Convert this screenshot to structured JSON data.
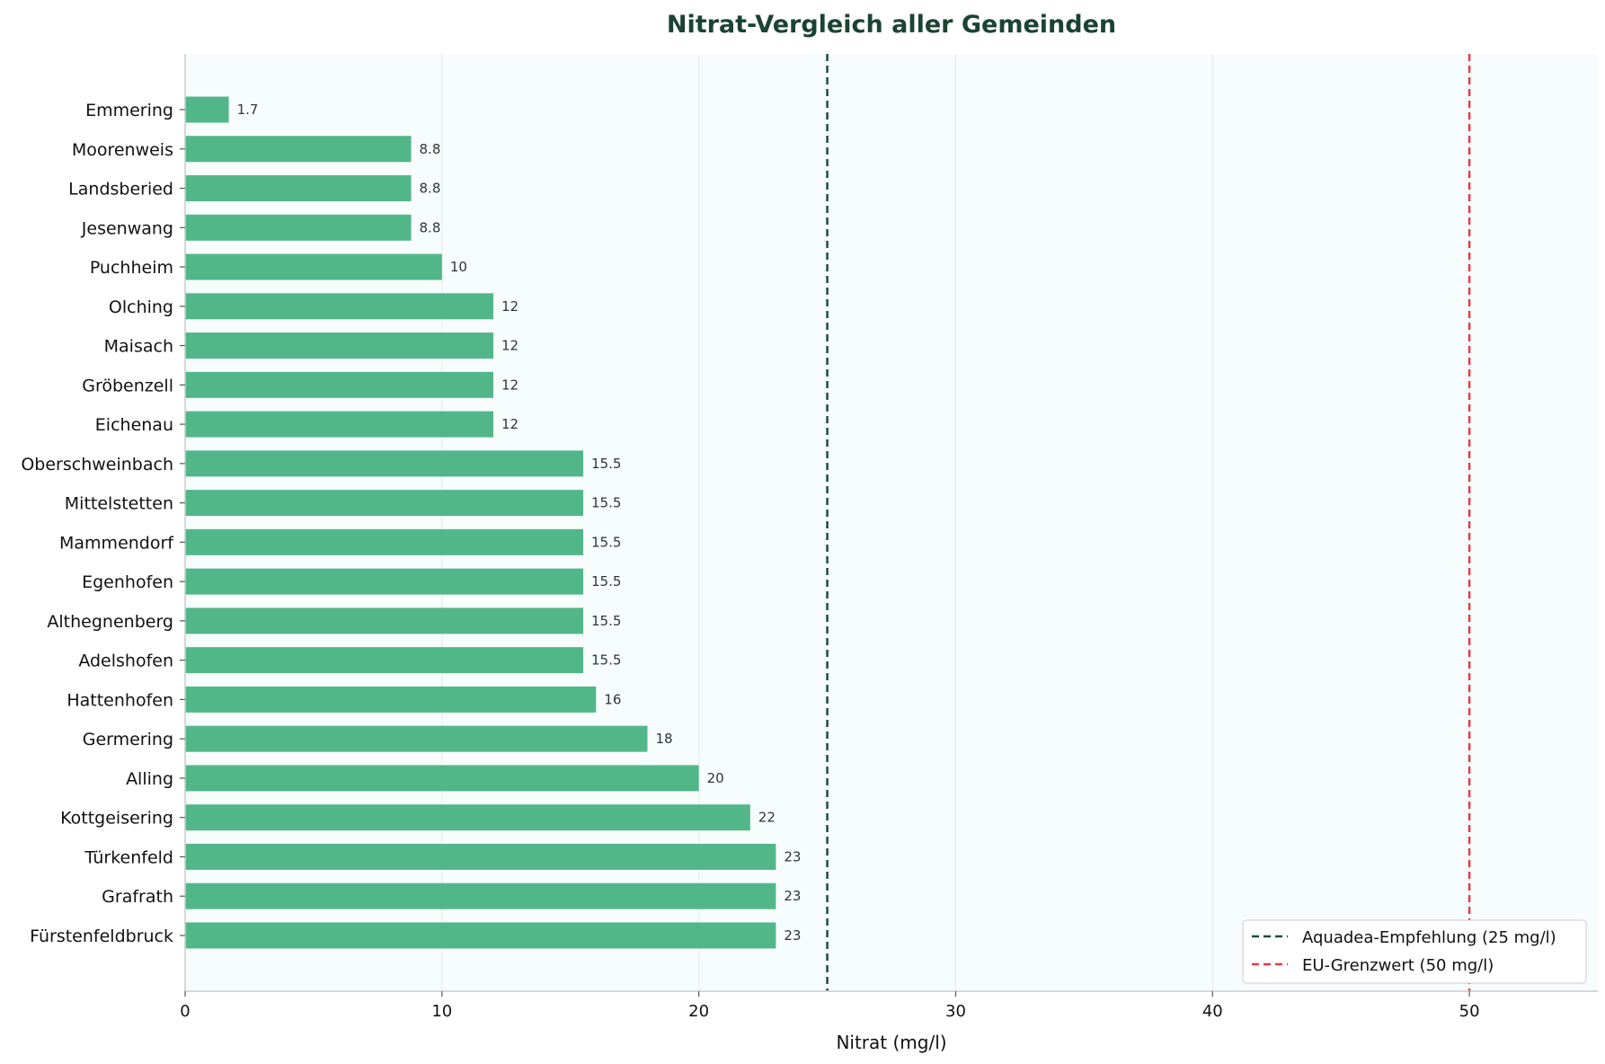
{
  "chart_data": {
    "type": "bar",
    "orientation": "horizontal",
    "title": "Nitrat-Vergleich aller Gemeinden",
    "xlabel": "Nitrat (mg/l)",
    "ylabel": "",
    "xlim": [
      0,
      55
    ],
    "xticks": [
      0,
      10,
      20,
      30,
      40,
      50
    ],
    "grid": "vertical",
    "categories": [
      "Emmering",
      "Moorenweis",
      "Landsberied",
      "Jesenwang",
      "Puchheim",
      "Olching",
      "Maisach",
      "Gröbenzell",
      "Eichenau",
      "Oberschweinbach",
      "Mittelstetten",
      "Mammendorf",
      "Egenhofen",
      "Althegnenberg",
      "Adelshofen",
      "Hattenhofen",
      "Germering",
      "Alling",
      "Kottgeisering",
      "Türkenfeld",
      "Grafrath",
      "Fürstenfeldbruck"
    ],
    "values": [
      1.7,
      8.8,
      8.8,
      8.8,
      10,
      12,
      12,
      12,
      12,
      15.5,
      15.5,
      15.5,
      15.5,
      15.5,
      15.5,
      16,
      18,
      20,
      22,
      23,
      23,
      23
    ],
    "value_labels": [
      "1.7",
      "8.8",
      "8.8",
      "8.8",
      "10",
      "12",
      "12",
      "12",
      "12",
      "15.5",
      "15.5",
      "15.5",
      "15.5",
      "15.5",
      "15.5",
      "16",
      "18",
      "20",
      "22",
      "23",
      "23",
      "23"
    ],
    "bar_color": "#52b788",
    "reference_lines": [
      {
        "x": 25,
        "label": "Aquadea-Empfehlung (25 mg/l)",
        "color": "#1b4d3e",
        "style": "dashed"
      },
      {
        "x": 50,
        "label": "EU-Grenzwert (50 mg/l)",
        "color": "#e63946",
        "style": "dashed"
      }
    ],
    "legend_position": "bottom-right",
    "colors": {
      "background": "#f7fdfd",
      "title": "#1b4332",
      "grid": "#e3efe9",
      "axis": "#cccccc"
    }
  }
}
